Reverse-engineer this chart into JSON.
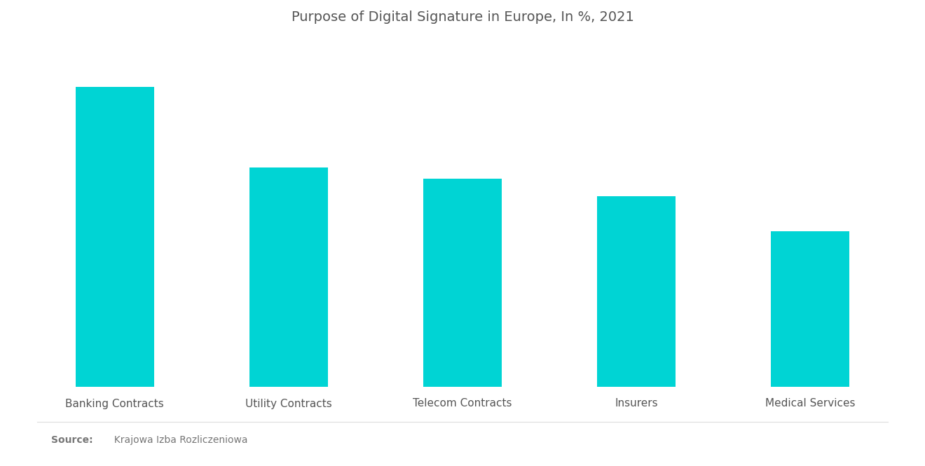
{
  "title": "Purpose of Digital Signature in Europe, In %, 2021",
  "categories": [
    "Banking Contracts",
    "Utility Contracts",
    "Telecom Contracts",
    "Insurers",
    "Medical Services"
  ],
  "values": [
    52,
    38,
    36,
    33,
    27
  ],
  "bar_color": "#00D4D4",
  "background_color": "#ffffff",
  "title_fontsize": 14,
  "xlabel_fontsize": 11,
  "source_text_bold": "Source:",
  "source_text": "  Krajowa Izba Rozliczeniowa",
  "ylim": [
    0,
    60
  ]
}
